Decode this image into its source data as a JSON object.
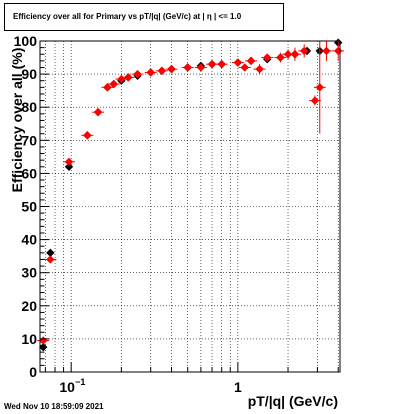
{
  "title": "Efficiency over all for Primary vs pT/|q| (GeV/c) at |  η | <= 1.0",
  "footer": "Wed Nov 10 18:59:09 2021",
  "colors": {
    "series_black": "#000000",
    "series_red": "#ff0000",
    "frame": "#000000",
    "grid": "#000000"
  },
  "chart_data": {
    "type": "scatter",
    "title": "Efficiency over all for Primary vs pT/|q| (GeV/c) at |  η | <= 1.0",
    "xlabel": "pT/|q| (GeV/c)",
    "ylabel": "Efficiency over all (%)",
    "xscale": "log",
    "xlim": [
      0.065,
      4.1
    ],
    "ylim": [
      0,
      100
    ],
    "yticks": [
      0,
      10,
      20,
      30,
      40,
      50,
      60,
      70,
      80,
      90,
      100
    ],
    "xtick_labels": [
      "10^-1",
      "1"
    ],
    "grid": true,
    "series": [
      {
        "marker": "diamond",
        "color": "#000000",
        "x": [
          0.068,
          0.075,
          0.097,
          0.125,
          0.145,
          0.165,
          0.18,
          0.2,
          0.22,
          0.25,
          0.3,
          0.35,
          0.4,
          0.5,
          0.6,
          0.7,
          0.8,
          1.0,
          1.2,
          1.5,
          1.8,
          2.2,
          2.6,
          3.1,
          4.0
        ],
        "y": [
          7.5,
          36,
          62,
          71.5,
          78.5,
          86,
          87,
          88,
          89,
          89.5,
          90.5,
          91,
          91.5,
          92,
          92.5,
          93,
          93,
          93.5,
          94,
          94.5,
          95,
          96,
          97,
          97,
          99.5
        ]
      },
      {
        "marker": "diamond",
        "color": "#ff0000",
        "x": [
          0.068,
          0.075,
          0.097,
          0.125,
          0.145,
          0.165,
          0.18,
          0.2,
          0.22,
          0.25,
          0.3,
          0.35,
          0.4,
          0.5,
          0.6,
          0.7,
          0.8,
          1.0,
          1.1,
          1.2,
          1.35,
          1.5,
          1.8,
          2.0,
          2.2,
          2.5,
          2.9,
          3.1,
          3.4,
          4.0
        ],
        "y": [
          9.5,
          34,
          63.5,
          71.5,
          78.5,
          86,
          87,
          88.5,
          89,
          90,
          90.5,
          91,
          91.5,
          92,
          92,
          93,
          93,
          93.5,
          92,
          94,
          91.5,
          95,
          95,
          96,
          96,
          97,
          82,
          86,
          97,
          97
        ],
        "yerr": [
          0.8,
          0.8,
          0.8,
          0.6,
          0.6,
          0.5,
          0.5,
          0.5,
          0.5,
          0.5,
          0.5,
          0.5,
          0.5,
          0.5,
          0.5,
          0.5,
          0.6,
          0.6,
          1.0,
          1.0,
          1.5,
          1.0,
          1.5,
          1.5,
          2.0,
          2.0,
          1.5,
          14,
          3.0,
          3.0
        ]
      }
    ]
  }
}
